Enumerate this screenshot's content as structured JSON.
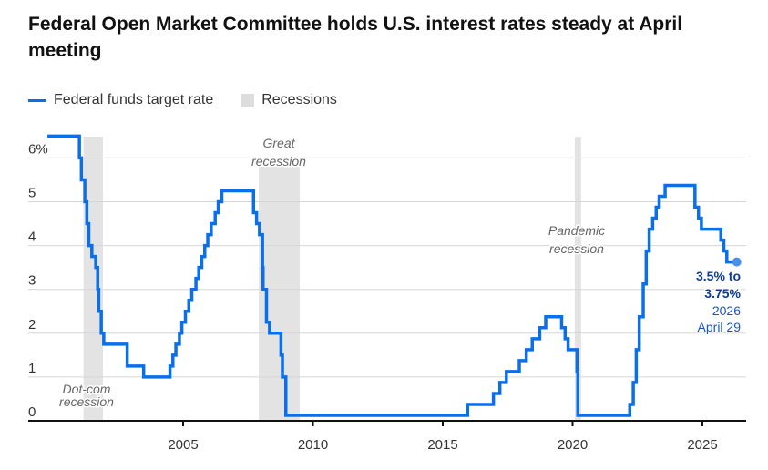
{
  "chart_data": {
    "type": "line",
    "title": "Federal Open Market Committee holds U.S. interest rates steady at April meeting",
    "legend": [
      {
        "name": "Federal funds target rate",
        "color": "#0a6fe8",
        "kind": "line"
      },
      {
        "name": "Recessions",
        "color": "#dddddd",
        "kind": "box"
      }
    ],
    "legend_placement": "top-left",
    "y_ticks": [
      "0",
      "1",
      "2",
      "3",
      "4",
      "5",
      "6%"
    ],
    "ylim": [
      0,
      6.5
    ],
    "x_ticks": [
      "2005",
      "2010",
      "2015",
      "2020",
      "2025"
    ],
    "xlim": [
      "2000-01-01",
      "2026-12-31"
    ],
    "grid": true,
    "series": [
      {
        "name": "Federal funds target rate",
        "color": "#0a6fe8",
        "step": true,
        "points": [
          [
            "2000-05-16",
            6.5
          ],
          [
            "2001-01-03",
            6.0
          ],
          [
            "2001-01-31",
            5.5
          ],
          [
            "2001-03-20",
            5.0
          ],
          [
            "2001-04-18",
            4.5
          ],
          [
            "2001-05-15",
            4.0
          ],
          [
            "2001-06-27",
            3.75
          ],
          [
            "2001-08-21",
            3.5
          ],
          [
            "2001-09-17",
            3.0
          ],
          [
            "2001-10-02",
            2.5
          ],
          [
            "2001-11-06",
            2.0
          ],
          [
            "2001-12-11",
            1.75
          ],
          [
            "2002-11-06",
            1.25
          ],
          [
            "2003-06-25",
            1.0
          ],
          [
            "2004-06-30",
            1.25
          ],
          [
            "2004-08-10",
            1.5
          ],
          [
            "2004-09-21",
            1.75
          ],
          [
            "2004-11-10",
            2.0
          ],
          [
            "2004-12-14",
            2.25
          ],
          [
            "2005-02-02",
            2.5
          ],
          [
            "2005-03-22",
            2.75
          ],
          [
            "2005-05-03",
            3.0
          ],
          [
            "2005-06-30",
            3.25
          ],
          [
            "2005-08-09",
            3.5
          ],
          [
            "2005-09-20",
            3.75
          ],
          [
            "2005-11-01",
            4.0
          ],
          [
            "2005-12-13",
            4.25
          ],
          [
            "2006-01-31",
            4.5
          ],
          [
            "2006-03-28",
            4.75
          ],
          [
            "2006-05-10",
            5.0
          ],
          [
            "2006-06-29",
            5.25
          ],
          [
            "2007-09-18",
            4.75
          ],
          [
            "2007-10-31",
            4.5
          ],
          [
            "2007-12-11",
            4.25
          ],
          [
            "2008-01-22",
            3.5
          ],
          [
            "2008-01-30",
            3.0
          ],
          [
            "2008-03-18",
            2.25
          ],
          [
            "2008-04-30",
            2.0
          ],
          [
            "2008-10-08",
            1.5
          ],
          [
            "2008-10-29",
            1.0
          ],
          [
            "2008-12-16",
            0.125
          ],
          [
            "2015-12-16",
            0.375
          ],
          [
            "2016-12-14",
            0.625
          ],
          [
            "2017-03-15",
            0.875
          ],
          [
            "2017-06-14",
            1.125
          ],
          [
            "2017-12-13",
            1.375
          ],
          [
            "2018-03-21",
            1.625
          ],
          [
            "2018-06-13",
            1.875
          ],
          [
            "2018-09-26",
            2.125
          ],
          [
            "2018-12-19",
            2.375
          ],
          [
            "2019-07-31",
            2.125
          ],
          [
            "2019-09-18",
            1.875
          ],
          [
            "2019-10-30",
            1.625
          ],
          [
            "2020-03-03",
            1.125
          ],
          [
            "2020-03-15",
            0.125
          ],
          [
            "2022-03-16",
            0.375
          ],
          [
            "2022-05-04",
            0.875
          ],
          [
            "2022-06-15",
            1.625
          ],
          [
            "2022-07-27",
            2.375
          ],
          [
            "2022-09-21",
            3.125
          ],
          [
            "2022-11-02",
            3.875
          ],
          [
            "2022-12-14",
            4.375
          ],
          [
            "2023-02-01",
            4.625
          ],
          [
            "2023-03-22",
            4.875
          ],
          [
            "2023-05-03",
            5.125
          ],
          [
            "2023-07-26",
            5.375
          ],
          [
            "2024-09-18",
            4.875
          ],
          [
            "2024-11-07",
            4.625
          ],
          [
            "2024-12-18",
            4.375
          ],
          [
            "2025-09-17",
            4.125
          ],
          [
            "2025-10-29",
            3.875
          ],
          [
            "2025-12-10",
            3.625
          ],
          [
            "2026-04-29",
            3.625
          ]
        ]
      }
    ],
    "recessions": [
      {
        "label_line1": "Dot-com",
        "label_line2": "recession",
        "start": "2001-03-01",
        "end": "2001-11-30"
      },
      {
        "label_line1": "Great",
        "label_line2": "recession",
        "start": "2007-12-01",
        "end": "2009-06-30"
      },
      {
        "label_line1": "Pandemic",
        "label_line2": "recession",
        "start": "2020-02-01",
        "end": "2020-04-30"
      }
    ],
    "annotation": {
      "line1": "3.5% to",
      "line2": "3.75%",
      "line3": "2026",
      "line4": "April 29"
    }
  }
}
